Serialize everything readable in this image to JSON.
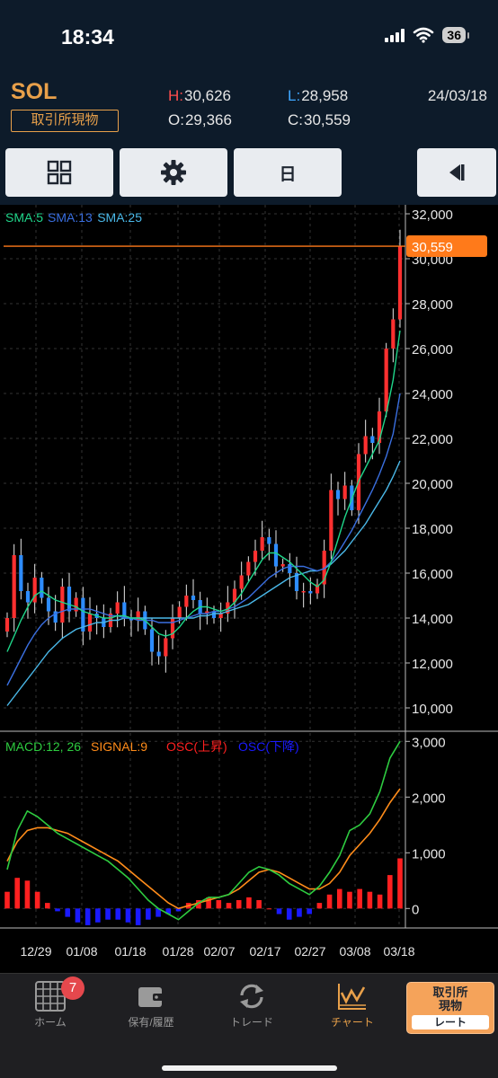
{
  "status_bar": {
    "time": "18:34",
    "battery": "36"
  },
  "header": {
    "symbol": "SOL",
    "market": "取引所現物",
    "high_label": "H:",
    "high": "30,626",
    "low_label": "L:",
    "low": "28,958",
    "open_label": "O:",
    "open": "29,366",
    "close_label": "C:",
    "close": "30,559",
    "date": "24/03/18"
  },
  "toolbar": {
    "period_label": "日"
  },
  "colors": {
    "up": "#ff3030",
    "down": "#2d8cff",
    "sma5": "#1fd68a",
    "sma13": "#3a6fe0",
    "sma25": "#4ab8e8",
    "macd": "#2ecc40",
    "signal": "#ff8c1a",
    "osc_up": "#ff2020",
    "osc_down": "#1a1aff",
    "price_line": "#ff7a1a"
  },
  "chart_data": [
    {
      "type": "candlestick",
      "legend": [
        {
          "name": "SMA:5",
          "color": "#1fd68a"
        },
        {
          "name": "SMA:13",
          "color": "#3a6fe0"
        },
        {
          "name": "SMA:25",
          "color": "#4ab8e8"
        }
      ],
      "y_ticks": [
        "32,000",
        "30,000",
        "28,000",
        "26,000",
        "24,000",
        "22,000",
        "20,000",
        "18,000",
        "16,000",
        "14,000",
        "12,000",
        "10,000"
      ],
      "y_tick_values": [
        32000,
        30000,
        28000,
        26000,
        24000,
        22000,
        20000,
        18000,
        16000,
        14000,
        12000,
        10000
      ],
      "ylim": [
        9000,
        32400
      ],
      "x_labels": [
        "12/29",
        "01/08",
        "01/18",
        "01/28",
        "02/07",
        "02/17",
        "02/27",
        "03/08",
        "03/18"
      ],
      "current_price": 30559,
      "current_price_label": "30,559",
      "grid": true,
      "close": [
        14000,
        16800,
        15200,
        14700,
        15800,
        14900,
        14300,
        13800,
        15400,
        14300,
        14900,
        13400,
        14200,
        14000,
        13600,
        14200,
        14700,
        14000,
        13900,
        14300,
        13500,
        12500,
        12300,
        13100,
        14000,
        14500,
        15000,
        14800,
        14200,
        14300,
        14000,
        14200,
        14700,
        15300,
        15900,
        16500,
        17000,
        17600,
        17300,
        16300,
        16400,
        16000,
        15200,
        15200,
        15100,
        15500,
        17000,
        19700,
        19300,
        19900,
        18800,
        21300,
        22100,
        21800,
        23200,
        26000,
        27300,
        30559
      ],
      "sma5": [
        12500,
        13200,
        13900,
        14500,
        15000,
        15200,
        15000,
        14800,
        14700,
        14600,
        14500,
        14300,
        14200,
        14100,
        14000,
        14000,
        14100,
        14100,
        14000,
        14000,
        13900,
        13600,
        13300,
        13200,
        13300,
        13600,
        14000,
        14300,
        14500,
        14500,
        14400,
        14300,
        14400,
        14700,
        15100,
        15600,
        16100,
        16600,
        16900,
        16900,
        16700,
        16500,
        16200,
        15900,
        15600,
        15400,
        15700,
        16500,
        17500,
        18500,
        19300,
        20100,
        20700,
        21300,
        21900,
        23100,
        24600,
        26800
      ],
      "sma13": [
        11000,
        11600,
        12200,
        12800,
        13300,
        13700,
        14000,
        14200,
        14300,
        14400,
        14400,
        14400,
        14400,
        14300,
        14200,
        14100,
        14100,
        14000,
        14000,
        13900,
        13900,
        13900,
        13800,
        13800,
        13800,
        13900,
        14000,
        14100,
        14200,
        14200,
        14300,
        14300,
        14400,
        14500,
        14700,
        14900,
        15200,
        15500,
        15800,
        16000,
        16200,
        16300,
        16300,
        16300,
        16200,
        16100,
        16200,
        16500,
        16900,
        17400,
        17900,
        18500,
        19100,
        19700,
        20400,
        21200,
        22200,
        24000
      ],
      "sma25": [
        10100,
        10500,
        10900,
        11300,
        11700,
        12100,
        12500,
        12800,
        13100,
        13300,
        13500,
        13600,
        13700,
        13800,
        13800,
        13900,
        13900,
        14000,
        14000,
        14000,
        14000,
        14000,
        14000,
        14000,
        14000,
        14000,
        14000,
        14000,
        14100,
        14100,
        14200,
        14200,
        14300,
        14400,
        14500,
        14600,
        14800,
        15000,
        15200,
        15400,
        15600,
        15800,
        15900,
        16000,
        16100,
        16100,
        16200,
        16400,
        16700,
        17000,
        17400,
        17800,
        18200,
        18700,
        19200,
        19700,
        20300,
        21000
      ]
    },
    {
      "type": "line",
      "legend": [
        {
          "name": "MACD:12, 26",
          "color": "#2ecc40"
        },
        {
          "name": "SIGNAL:9",
          "color": "#ff8c1a"
        },
        {
          "name": "OSC(上昇)",
          "color": "#ff2020"
        },
        {
          "name": "OSC(下降)",
          "color": "#1a1aff"
        }
      ],
      "y_ticks": [
        "3,000",
        "2,000",
        "1,000",
        "0"
      ],
      "y_tick_values": [
        3000,
        2000,
        1000,
        0
      ],
      "ylim": [
        -350,
        3150
      ],
      "macd": [
        700,
        1400,
        1750,
        1650,
        1500,
        1350,
        1250,
        1150,
        1050,
        950,
        850,
        700,
        550,
        350,
        150,
        0,
        -100,
        -200,
        -50,
        100,
        200,
        200,
        250,
        450,
        650,
        750,
        700,
        600,
        450,
        350,
        250,
        400,
        650,
        950,
        1400,
        1500,
        1700,
        2100,
        2700,
        3000
      ],
      "signal": [
        850,
        1200,
        1400,
        1450,
        1450,
        1400,
        1350,
        1250,
        1150,
        1050,
        950,
        850,
        700,
        550,
        400,
        250,
        100,
        0,
        50,
        100,
        150,
        200,
        250,
        350,
        500,
        650,
        700,
        650,
        550,
        450,
        350,
        350,
        450,
        650,
        950,
        1150,
        1350,
        1600,
        1900,
        2150
      ],
      "osc": [
        300,
        550,
        500,
        300,
        100,
        -50,
        -150,
        -250,
        -300,
        -250,
        -200,
        -200,
        -250,
        -300,
        -200,
        -150,
        -100,
        -50,
        100,
        150,
        200,
        150,
        100,
        150,
        200,
        150,
        0,
        -100,
        -200,
        -150,
        -100,
        100,
        250,
        350,
        300,
        350,
        300,
        250,
        600,
        900
      ]
    }
  ],
  "tabs": [
    {
      "label": "ホーム",
      "badge": "7"
    },
    {
      "label": "保有/履歴"
    },
    {
      "label": "トレード"
    },
    {
      "label": "チャート"
    }
  ],
  "rate_button": {
    "top": "取引所\n現物",
    "bottom": "レート"
  }
}
